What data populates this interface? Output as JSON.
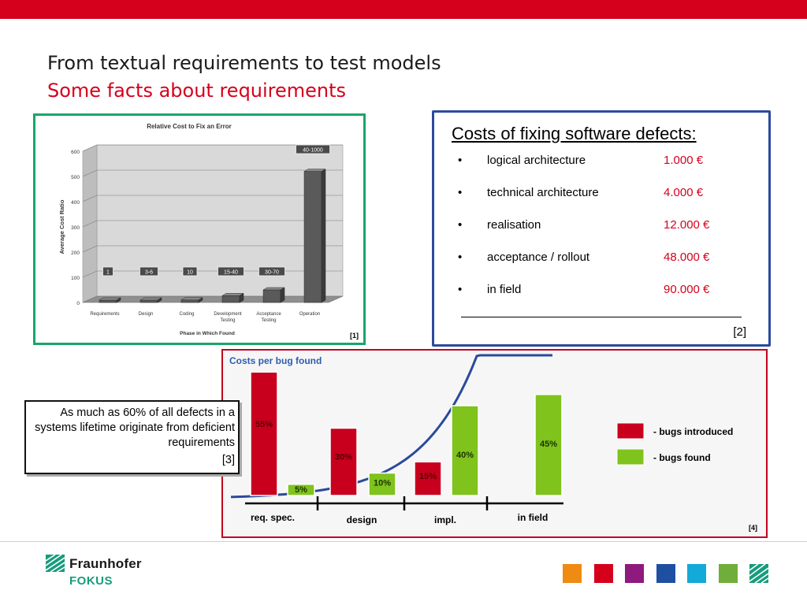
{
  "slide": {
    "title": "From textual requirements to test models",
    "subtitle": "Some facts about requirements"
  },
  "cost_panel": {
    "title": "Costs of fixing software defects:",
    "bullet": "•",
    "items": [
      {
        "label": "logical architecture",
        "value": "1.000 €"
      },
      {
        "label": "technical architecture",
        "value": "4.000 €"
      },
      {
        "label": "realisation",
        "value": "12.000 €"
      },
      {
        "label": "acceptance / rollout",
        "value": "48.000 €"
      },
      {
        "label": "in field",
        "value": "90.000 €"
      }
    ],
    "reference": "[2]"
  },
  "callout": {
    "text": "As much as 60% of all defects in a systems lifetime originate from deficient requirements",
    "reference": "[3]"
  },
  "chart_data": [
    {
      "type": "bar",
      "title": "Relative Cost to Fix an Error",
      "xlabel": "Phase in Which Found",
      "ylabel": "Average Cost Ratio",
      "ylim": [
        0,
        600
      ],
      "yticks": [
        0,
        100,
        200,
        300,
        400,
        500,
        600
      ],
      "grid": true,
      "categories": [
        "Requirements",
        "Design",
        "Coding",
        "Development Testing",
        "Acceptance Testing",
        "Operation"
      ],
      "category_lines": [
        [
          "Requirements"
        ],
        [
          "Design"
        ],
        [
          "Coding"
        ],
        [
          "Development",
          "Testing"
        ],
        [
          "Acceptance",
          "Testing"
        ],
        [
          "Operation"
        ]
      ],
      "values": [
        1,
        5,
        10,
        27,
        50,
        520
      ],
      "data_labels": [
        "1",
        "3-6",
        "10",
        "15-40",
        "30-70",
        "40-1000"
      ],
      "reference": "[1]",
      "colors": {
        "bar": "#5a5a5a",
        "background": "#d9d9d9"
      }
    },
    {
      "type": "bar",
      "title": "Costs per bug found",
      "categories": [
        "req. spec.",
        "design",
        "impl.",
        "in field"
      ],
      "series": [
        {
          "name": "- bugs introduced",
          "color": "#c8001e",
          "values": [
            55,
            30,
            15,
            null
          ]
        },
        {
          "name": "- bugs found",
          "color": "#7fc31c",
          "values": [
            5,
            10,
            40,
            45
          ]
        }
      ],
      "data_labels": {
        "bugs_introduced": [
          "55%",
          "30%",
          "15%",
          ""
        ],
        "bugs_found": [
          "5%",
          "10%",
          "40%",
          "45%"
        ]
      },
      "legend": "right",
      "trend_line": "exponential cost curve",
      "reference": "[4]"
    }
  ],
  "footer": {
    "logo_name": "Fraunhofer",
    "logo_sub": "FOKUS",
    "color_squares": [
      "#ef8a12",
      "#d5001c",
      "#8e1a7e",
      "#1f4fa0",
      "#13a9d8",
      "#6fae3a"
    ]
  }
}
